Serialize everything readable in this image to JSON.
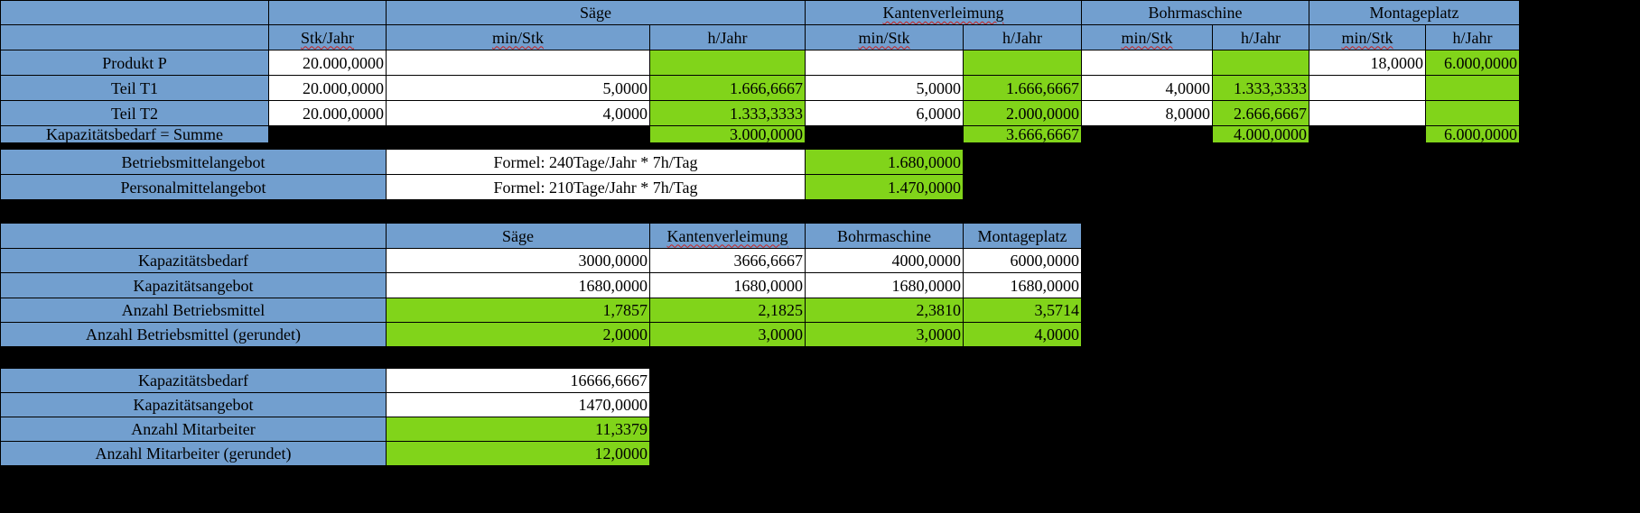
{
  "table1": {
    "group_headers": [
      "",
      "",
      "Säge",
      "Kantenverleimung",
      "Bohrmaschine",
      "Montageplatz"
    ],
    "sub_headers": [
      "",
      "Stk/Jahr",
      "min/Stk",
      "h/Jahr",
      "min/Stk",
      "h/Jahr",
      "min/Stk",
      "h/Jahr",
      "min/Stk",
      "h/Jahr"
    ],
    "rows": [
      [
        "Produkt P",
        "20.000,0000",
        "",
        "",
        "",
        "",
        "",
        "",
        "18,0000",
        "6.000,0000"
      ],
      [
        "Teil T1",
        "20.000,0000",
        "5,0000",
        "1.666,6667",
        "5,0000",
        "1.666,6667",
        "4,0000",
        "1.333,3333",
        "",
        ""
      ],
      [
        "Teil T2",
        "20.000,0000",
        "4,0000",
        "1.333,3333",
        "6,0000",
        "2.000,0000",
        "8,0000",
        "2.666,6667",
        "",
        ""
      ],
      [
        "Kapazitätsbedarf = Summe",
        "",
        "",
        "3.000,0000",
        "",
        "3.666,6667",
        "",
        "4.000,0000",
        "",
        "6.000,0000"
      ]
    ]
  },
  "table2": {
    "rows": [
      [
        "Betriebsmittelangebot",
        "Formel: 240Tage/Jahr * 7h/Tag",
        "1.680,0000"
      ],
      [
        "Personalmittelangebot",
        "Formel: 210Tage/Jahr * 7h/Tag",
        "1.470,0000"
      ]
    ]
  },
  "table3": {
    "headers": [
      "",
      "Säge",
      "Kantenverleimung",
      "Bohrmaschine",
      "Montageplatz"
    ],
    "rows": [
      [
        "Kapazitätsbedarf",
        "3000,0000",
        "3666,6667",
        "4000,0000",
        "6000,0000"
      ],
      [
        "Kapazitätsangebot",
        "1680,0000",
        "1680,0000",
        "1680,0000",
        "1680,0000"
      ],
      [
        "Anzahl Betriebsmittel",
        "1,7857",
        "2,1825",
        "2,3810",
        "3,5714"
      ],
      [
        "Anzahl Betriebsmittel (gerundet)",
        "2,0000",
        "3,0000",
        "3,0000",
        "4,0000"
      ]
    ]
  },
  "table4": {
    "rows": [
      [
        "Kapazitätsbedarf",
        "16666,6667"
      ],
      [
        "Kapazitätsangebot",
        "1470,0000"
      ],
      [
        "Anzahl Mitarbeiter",
        "11,3379"
      ],
      [
        "Anzahl Mitarbeiter (gerundet)",
        "12,0000"
      ]
    ]
  },
  "colors": {
    "header_blue": "#729fcf",
    "result_green": "#81d41a",
    "input_white": "#ffffff",
    "background": "#000000"
  }
}
